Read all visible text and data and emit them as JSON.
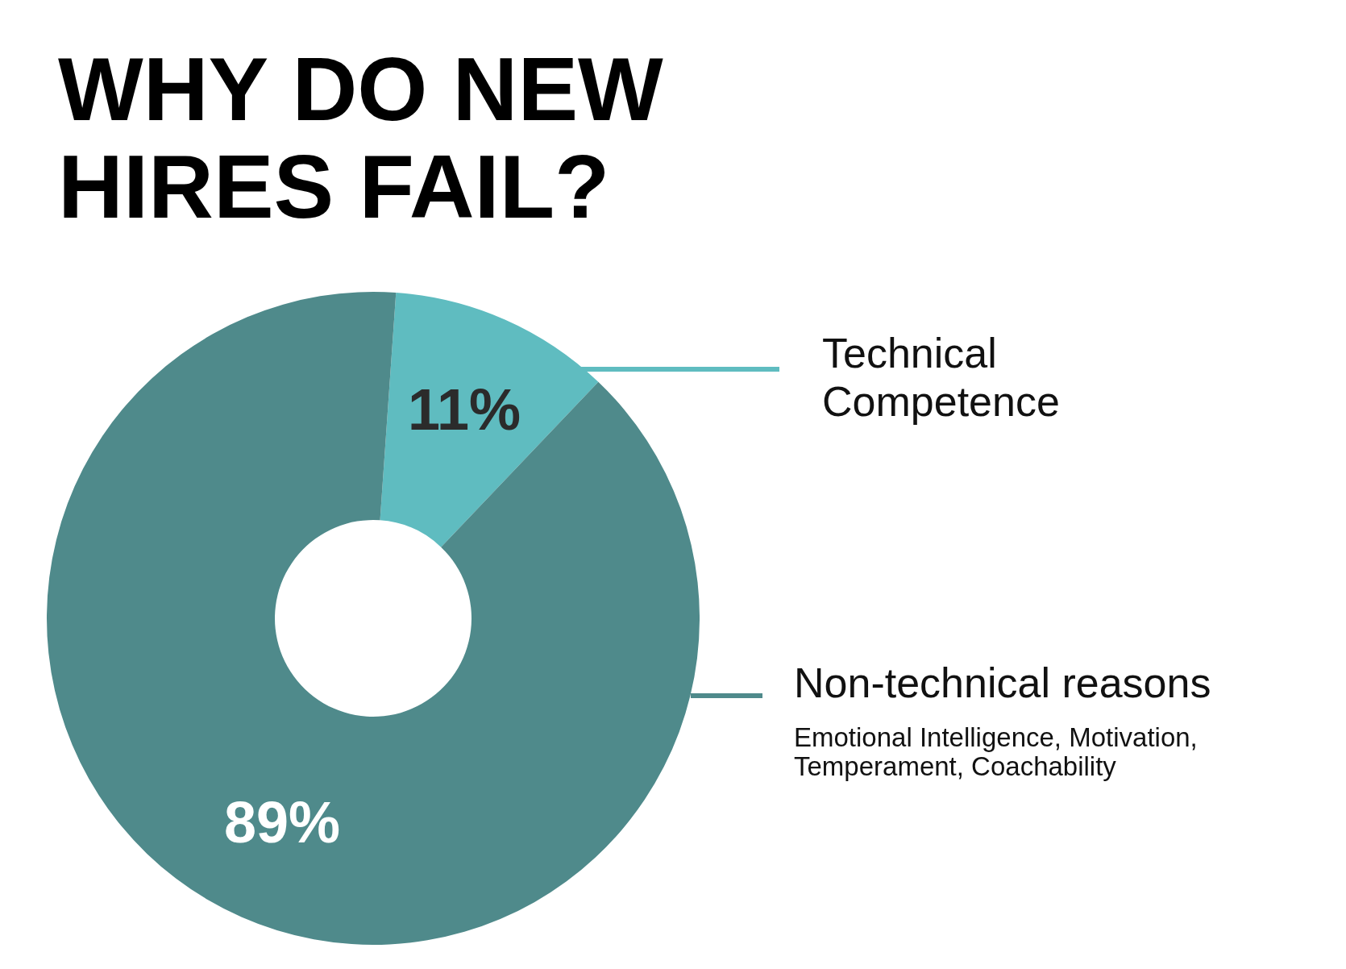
{
  "chart_data": {
    "type": "donut",
    "title": "WHY DO NEW HIRES FAIL?",
    "categories": [
      "Technical Competence",
      "Non-technical reasons"
    ],
    "values": [
      11,
      89
    ],
    "colors": [
      "#5fbcc0",
      "#4f8a8b"
    ],
    "value_labels": [
      "11%",
      "89%"
    ],
    "annotations": [
      "Emotional Intelligence, Motivation, Temperament, Coachability"
    ]
  }
}
